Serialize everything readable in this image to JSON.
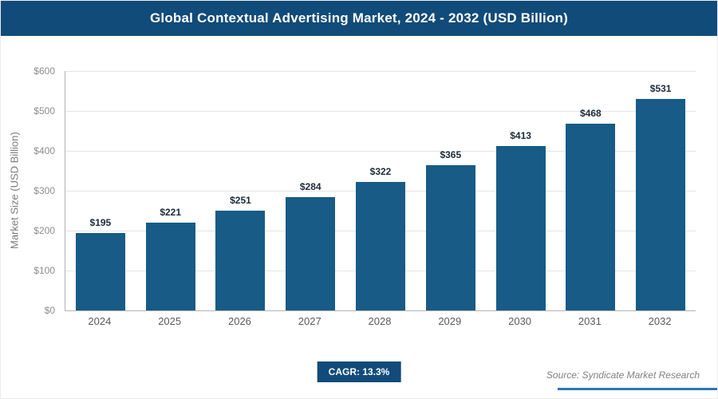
{
  "header": {
    "title": "Global Contextual Advertising Market, 2024 - 2032 (USD Billion)"
  },
  "chart_data": {
    "type": "bar",
    "title": "Global Contextual Advertising Market, 2024 - 2032 (USD Billion)",
    "categories": [
      "2024",
      "2025",
      "2026",
      "2027",
      "2028",
      "2029",
      "2030",
      "2031",
      "2032"
    ],
    "values": [
      195,
      221,
      251,
      284,
      322,
      365,
      413,
      468,
      531
    ],
    "value_labels": [
      "$195",
      "$221",
      "$251",
      "$284",
      "$322",
      "$365",
      "$413",
      "$468",
      "$531"
    ],
    "xlabel": "",
    "ylabel": "Market Size (USD Billion)",
    "ylim": [
      0,
      600
    ],
    "ytick_step": 100,
    "ytick_labels": [
      "$0",
      "$100",
      "$200",
      "$300",
      "$400",
      "$500",
      "$600"
    ],
    "grid": true,
    "legend": "none",
    "bar_color": "#175b86"
  },
  "footer": {
    "cagr_label": "CAGR: 13.3%",
    "source": "Source: Syndicate Market Research"
  },
  "colors": {
    "header_bg": "#114b79",
    "badge_bg": "#114b79",
    "underline": "#2e75b6",
    "bar": "#175b86"
  }
}
